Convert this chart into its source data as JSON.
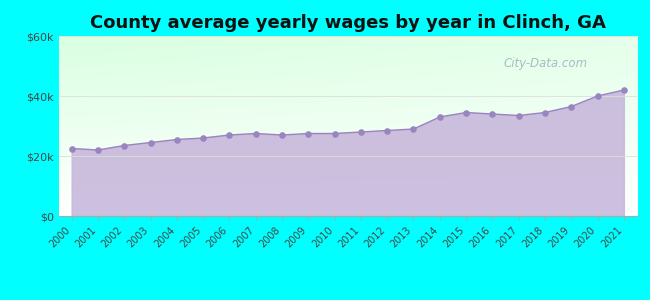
{
  "title": "County average yearly wages by year in Clinch, GA",
  "years": [
    2000,
    2001,
    2002,
    2003,
    2004,
    2005,
    2006,
    2007,
    2008,
    2009,
    2010,
    2011,
    2012,
    2013,
    2014,
    2015,
    2016,
    2017,
    2018,
    2019,
    2020,
    2021
  ],
  "wages": [
    22500,
    22000,
    23500,
    24500,
    25500,
    26000,
    27000,
    27500,
    27000,
    27500,
    27500,
    28000,
    28500,
    29000,
    33000,
    34500,
    34000,
    33500,
    34500,
    36500,
    40000,
    42000
  ],
  "ylim": [
    0,
    60000
  ],
  "yticks": [
    0,
    20000,
    40000,
    60000
  ],
  "ytick_labels": [
    "$0",
    "$20k",
    "$40k",
    "$60k"
  ],
  "fill_color": "#C8B8DC",
  "line_color": "#9B85C0",
  "marker_color": "#9B85C0",
  "bg_color_fig": "#00FFFF",
  "title_fontsize": 13,
  "watermark": "City-Data.com",
  "watermark_color": "#99aabb",
  "grid_color": "#dddddd"
}
